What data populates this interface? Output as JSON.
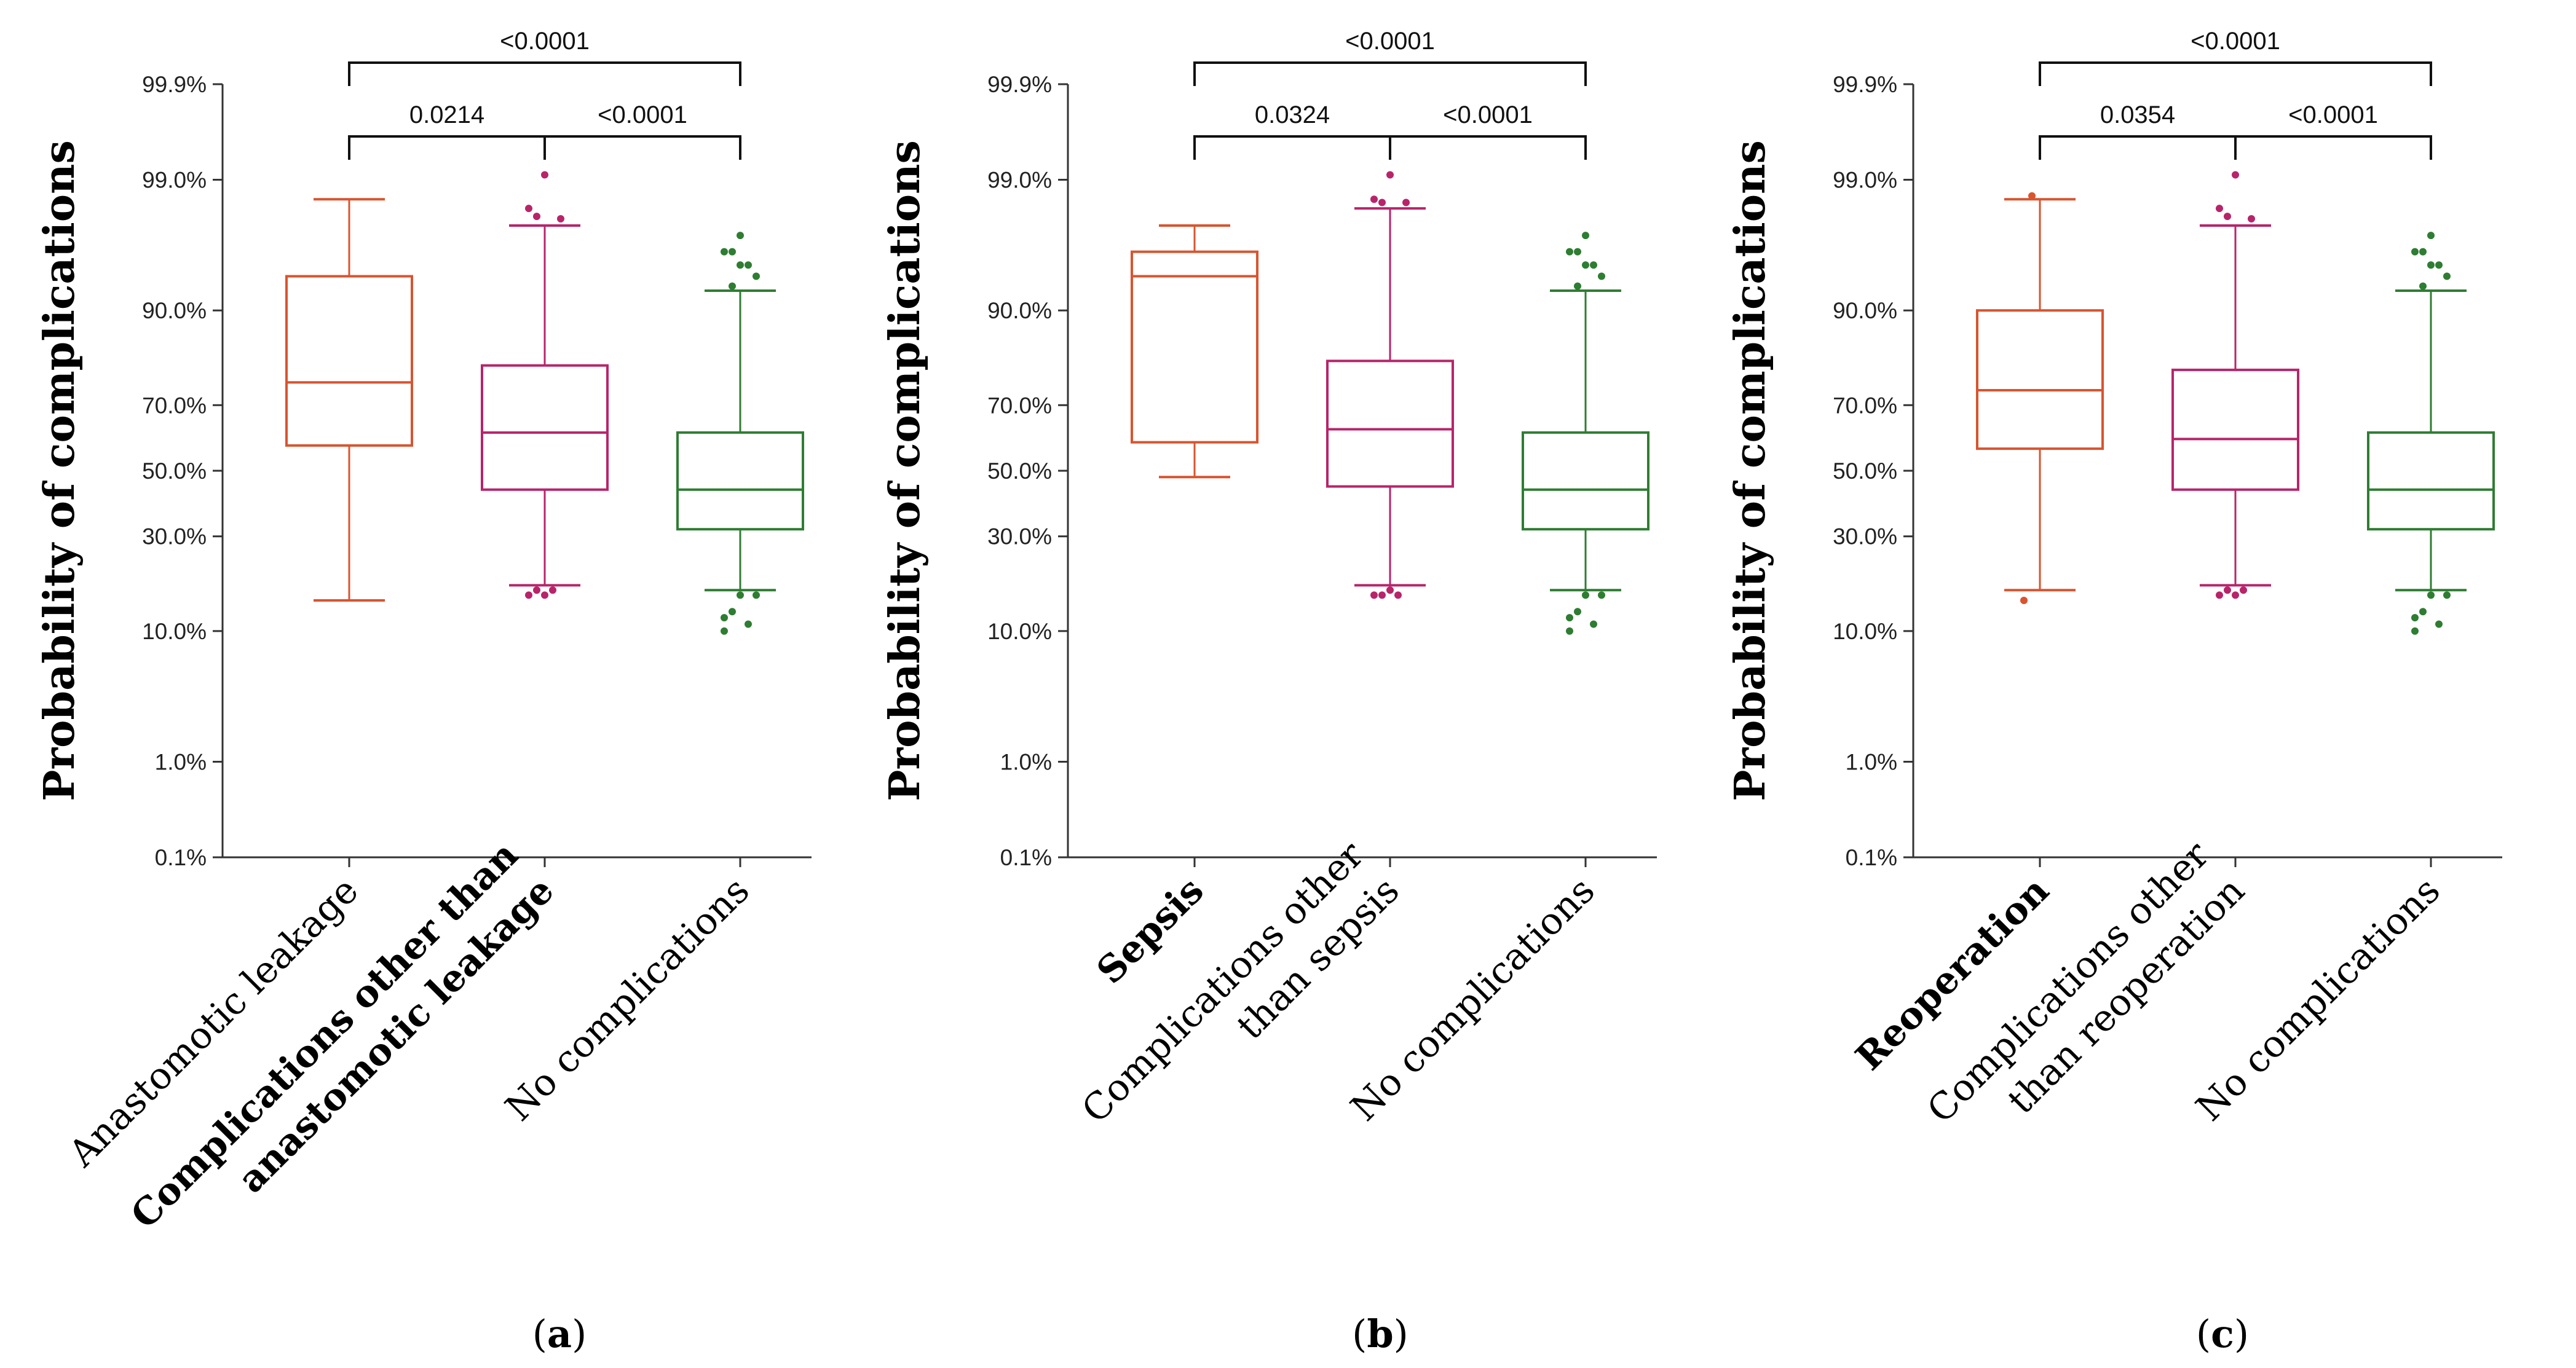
{
  "figure": {
    "panel_labels": [
      "(a)",
      "(b)",
      "(c)"
    ]
  },
  "chart_data": [
    {
      "type": "box",
      "panel": "(a)",
      "ylabel": "Probability of complications",
      "yscale": "probability",
      "ylim": [
        0.001,
        0.999
      ],
      "yticks": [
        {
          "value": 0.999,
          "label": "99.9%"
        },
        {
          "value": 0.99,
          "label": "99.0%"
        },
        {
          "value": 0.9,
          "label": "90.0%"
        },
        {
          "value": 0.7,
          "label": "70.0%"
        },
        {
          "value": 0.5,
          "label": "50.0%"
        },
        {
          "value": 0.3,
          "label": "30.0%"
        },
        {
          "value": 0.1,
          "label": "10.0%"
        },
        {
          "value": 0.01,
          "label": "1.0%"
        },
        {
          "value": 0.001,
          "label": "0.1%"
        }
      ],
      "categories": [
        {
          "lines": [
            "Anastomotic leakage"
          ],
          "bold": false
        },
        {
          "lines": [
            "Complications other than",
            "anastomotic leakage"
          ],
          "bold": true
        },
        {
          "lines": [
            "No complications"
          ],
          "bold": false
        }
      ],
      "series": [
        {
          "color": "#d9542f",
          "whisker_low": 0.15,
          "q1": 0.58,
          "median": 0.76,
          "q3": 0.94,
          "whisker_high": 0.985,
          "outliers": []
        },
        {
          "color": "#b8246a",
          "whisker_low": 0.18,
          "q1": 0.44,
          "median": 0.62,
          "q3": 0.8,
          "whisker_high": 0.975,
          "outliers": [
            0.16,
            0.17,
            0.16,
            0.17,
            0.978,
            0.982,
            0.979,
            0.991
          ]
        },
        {
          "color": "#2e7d32",
          "whisker_low": 0.17,
          "q1": 0.32,
          "median": 0.44,
          "q3": 0.62,
          "whisker_high": 0.925,
          "outliers": [
            0.12,
            0.13,
            0.16,
            0.11,
            0.16,
            0.1,
            0.93,
            0.95,
            0.95,
            0.94,
            0.96,
            0.96,
            0.97
          ]
        }
      ],
      "comparisons": [
        {
          "from": 0,
          "to": 1,
          "label": "0.0214",
          "level": 1
        },
        {
          "from": 1,
          "to": 2,
          "label": "<0.0001",
          "level": 1
        },
        {
          "from": 0,
          "to": 2,
          "label": "<0.0001",
          "level": 2
        }
      ]
    },
    {
      "type": "box",
      "panel": "(b)",
      "ylabel": "Probability of complications",
      "yscale": "probability",
      "ylim": [
        0.001,
        0.999
      ],
      "yticks": [
        {
          "value": 0.999,
          "label": "99.9%"
        },
        {
          "value": 0.99,
          "label": "99.0%"
        },
        {
          "value": 0.9,
          "label": "90.0%"
        },
        {
          "value": 0.7,
          "label": "70.0%"
        },
        {
          "value": 0.5,
          "label": "50.0%"
        },
        {
          "value": 0.3,
          "label": "30.0%"
        },
        {
          "value": 0.1,
          "label": "10.0%"
        },
        {
          "value": 0.01,
          "label": "1.0%"
        },
        {
          "value": 0.001,
          "label": "0.1%"
        }
      ],
      "categories": [
        {
          "lines": [
            "Sepsis"
          ],
          "bold": true
        },
        {
          "lines": [
            "Complications other",
            "than sepsis"
          ],
          "bold": false
        },
        {
          "lines": [
            "No complications"
          ],
          "bold": false
        }
      ],
      "series": [
        {
          "color": "#d9542f",
          "whisker_low": 0.48,
          "q1": 0.59,
          "median": 0.94,
          "q3": 0.96,
          "whisker_high": 0.975,
          "outliers": []
        },
        {
          "color": "#b8246a",
          "whisker_low": 0.18,
          "q1": 0.45,
          "median": 0.63,
          "q3": 0.81,
          "whisker_high": 0.982,
          "outliers": [
            0.16,
            0.16,
            0.17,
            0.16,
            0.984,
            0.985,
            0.984,
            0.991
          ]
        },
        {
          "color": "#2e7d32",
          "whisker_low": 0.17,
          "q1": 0.32,
          "median": 0.44,
          "q3": 0.62,
          "whisker_high": 0.925,
          "outliers": [
            0.12,
            0.13,
            0.16,
            0.11,
            0.16,
            0.1,
            0.93,
            0.95,
            0.95,
            0.94,
            0.96,
            0.96,
            0.97
          ]
        }
      ],
      "comparisons": [
        {
          "from": 0,
          "to": 1,
          "label": "0.0324",
          "level": 1
        },
        {
          "from": 1,
          "to": 2,
          "label": "<0.0001",
          "level": 1
        },
        {
          "from": 0,
          "to": 2,
          "label": "<0.0001",
          "level": 2
        }
      ]
    },
    {
      "type": "box",
      "panel": "(c)",
      "ylabel": "Probability of complications",
      "yscale": "probability",
      "ylim": [
        0.001,
        0.999
      ],
      "yticks": [
        {
          "value": 0.999,
          "label": "99.9%"
        },
        {
          "value": 0.99,
          "label": "99.0%"
        },
        {
          "value": 0.9,
          "label": "90.0%"
        },
        {
          "value": 0.7,
          "label": "70.0%"
        },
        {
          "value": 0.5,
          "label": "50.0%"
        },
        {
          "value": 0.3,
          "label": "30.0%"
        },
        {
          "value": 0.1,
          "label": "10.0%"
        },
        {
          "value": 0.01,
          "label": "1.0%"
        },
        {
          "value": 0.001,
          "label": "0.1%"
        }
      ],
      "categories": [
        {
          "lines": [
            "Reoperation"
          ],
          "bold": true
        },
        {
          "lines": [
            "Complications other",
            "than reoperation"
          ],
          "bold": false
        },
        {
          "lines": [
            "No complications"
          ],
          "bold": false
        }
      ],
      "series": [
        {
          "color": "#d9542f",
          "whisker_low": 0.17,
          "q1": 0.57,
          "median": 0.74,
          "q3": 0.9,
          "whisker_high": 0.985,
          "outliers": [
            0.15,
            0.986
          ]
        },
        {
          "color": "#b8246a",
          "whisker_low": 0.18,
          "q1": 0.44,
          "median": 0.6,
          "q3": 0.79,
          "whisker_high": 0.975,
          "outliers": [
            0.16,
            0.17,
            0.16,
            0.17,
            0.978,
            0.982,
            0.979,
            0.991
          ]
        },
        {
          "color": "#2e7d32",
          "whisker_low": 0.17,
          "q1": 0.32,
          "median": 0.44,
          "q3": 0.62,
          "whisker_high": 0.925,
          "outliers": [
            0.12,
            0.13,
            0.16,
            0.11,
            0.16,
            0.1,
            0.93,
            0.95,
            0.95,
            0.94,
            0.96,
            0.96,
            0.97
          ]
        }
      ],
      "comparisons": [
        {
          "from": 0,
          "to": 1,
          "label": "0.0354",
          "level": 1
        },
        {
          "from": 1,
          "to": 2,
          "label": "<0.0001",
          "level": 1
        },
        {
          "from": 0,
          "to": 2,
          "label": "<0.0001",
          "level": 2
        }
      ]
    }
  ]
}
